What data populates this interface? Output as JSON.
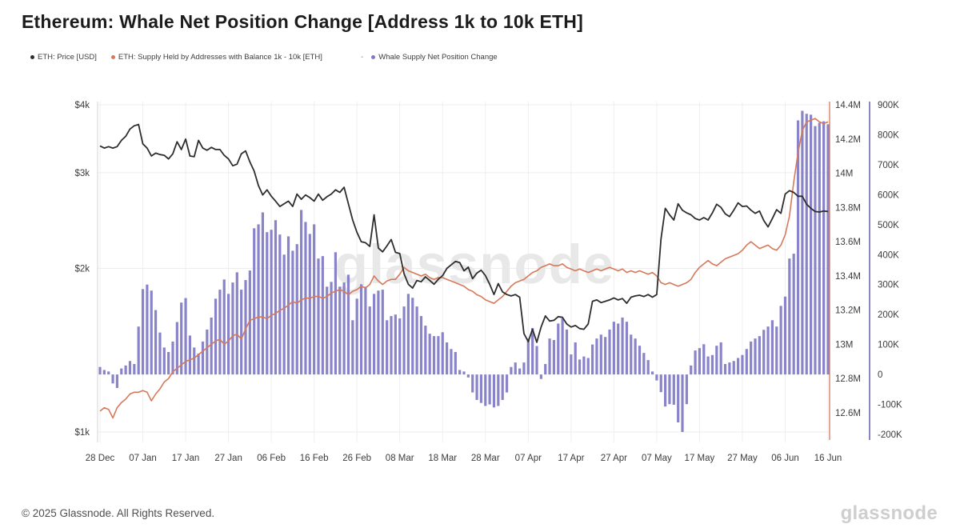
{
  "page": {
    "title": "Ethereum: Whale Net Position Change [Address 1k to 10k ETH]"
  },
  "legend": {
    "separator": "-",
    "items": [
      {
        "label": "ETH: Price [USD]",
        "color": "#2d2d2d"
      },
      {
        "label": "ETH: Supply Held by Addresses with Balance 1k - 10k [ETH]",
        "color": "#d6795a"
      },
      {
        "label": "Whale Supply Net Position Change",
        "color": "#7f7ac5"
      }
    ]
  },
  "watermark": "glassnode",
  "footer": {
    "copyright": "© 2025 Glassnode. All Rights Reserved.",
    "brand": "glassnode"
  },
  "chart_data": {
    "type": "mixed",
    "title": "Ethereum: Whale Net Position Change [Address 1k to 10k ETH]",
    "x_start": "28 Dec",
    "x_end": "16 Jun",
    "x_tick_labels": [
      "28 Dec",
      "07 Jan",
      "17 Jan",
      "27 Jan",
      "06 Feb",
      "16 Feb",
      "26 Feb",
      "08 Mar",
      "18 Mar",
      "28 Mar",
      "07 Apr",
      "17 Apr",
      "27 Apr",
      "07 May",
      "17 May",
      "27 May",
      "06 Jun",
      "16 Jun"
    ],
    "x_tick_day_index": [
      0,
      10,
      20,
      30,
      40,
      50,
      60,
      70,
      80,
      90,
      100,
      110,
      120,
      130,
      140,
      150,
      160,
      170
    ],
    "axes": {
      "price_left": {
        "scale": "log",
        "unit": "USD",
        "ticks": [
          "$4k",
          "$3k",
          "$2k",
          "$1k"
        ],
        "values": [
          4000,
          3000,
          2000,
          1000
        ],
        "range": [
          1000,
          4000
        ]
      },
      "supply_right": {
        "scale": "linear",
        "unit": "ETH",
        "ticks": [
          "14.4M",
          "14.2M",
          "14M",
          "13.8M",
          "13.6M",
          "13.4M",
          "13.2M",
          "13M",
          "12.8M",
          "12.6M"
        ],
        "values": [
          14.4,
          14.2,
          14.0,
          13.8,
          13.6,
          13.4,
          13.2,
          13.0,
          12.8,
          12.6
        ],
        "range": [
          12.6,
          14.4
        ]
      },
      "net_right": {
        "scale": "linear",
        "unit": "ETH",
        "ticks": [
          "900K",
          "800K",
          "700K",
          "600K",
          "500K",
          "400K",
          "300K",
          "200K",
          "100K",
          "0",
          "-100K",
          "-200K"
        ],
        "values": [
          900,
          800,
          700,
          600,
          500,
          400,
          300,
          200,
          100,
          0,
          -100,
          -200
        ],
        "range": [
          -200,
          900
        ]
      }
    },
    "series": [
      {
        "name": "ETH: Price [USD]",
        "type": "line",
        "axis": "price_left",
        "color": "#2d2d2d",
        "unit": "USD/day",
        "values": [
          3360,
          3330,
          3350,
          3330,
          3350,
          3440,
          3500,
          3610,
          3660,
          3680,
          3390,
          3330,
          3220,
          3260,
          3240,
          3230,
          3180,
          3250,
          3420,
          3310,
          3460,
          3220,
          3210,
          3440,
          3330,
          3300,
          3340,
          3310,
          3310,
          3230,
          3180,
          3090,
          3110,
          3250,
          3290,
          3140,
          3020,
          2840,
          2730,
          2790,
          2715,
          2660,
          2600,
          2630,
          2660,
          2600,
          2740,
          2680,
          2730,
          2700,
          2660,
          2740,
          2670,
          2710,
          2740,
          2790,
          2760,
          2820,
          2630,
          2455,
          2330,
          2240,
          2230,
          2195,
          2510,
          2180,
          2145,
          2200,
          2260,
          2140,
          2130,
          1956,
          1870,
          1840,
          1900,
          1890,
          1930,
          1900,
          1870,
          1910,
          1940,
          2000,
          2030,
          2060,
          2050,
          1980,
          2010,
          1915,
          1960,
          1985,
          1940,
          1870,
          1790,
          1875,
          1810,
          1790,
          1780,
          1790,
          1770,
          1517,
          1466,
          1545,
          1462,
          1560,
          1635,
          1600,
          1605,
          1630,
          1625,
          1580,
          1560,
          1570,
          1550,
          1545,
          1580,
          1740,
          1750,
          1730,
          1740,
          1750,
          1765,
          1750,
          1760,
          1725,
          1770,
          1780,
          1785,
          1775,
          1790,
          1770,
          1790,
          2265,
          2580,
          2510,
          2455,
          2630,
          2560,
          2530,
          2510,
          2470,
          2455,
          2480,
          2455,
          2530,
          2625,
          2590,
          2520,
          2490,
          2560,
          2640,
          2600,
          2605,
          2560,
          2525,
          2550,
          2450,
          2385,
          2470,
          2565,
          2525,
          2740,
          2780,
          2760,
          2715,
          2715,
          2625,
          2580,
          2545,
          2540,
          2550,
          2545
        ]
      },
      {
        "name": "ETH: Supply Held by Addresses with Balance 1k - 10k [ETH]",
        "type": "line",
        "axis": "supply_right",
        "color": "#d6795a",
        "unit": "M ETH/day",
        "values": [
          12.61,
          12.63,
          12.62,
          12.57,
          12.63,
          12.66,
          12.68,
          12.71,
          12.72,
          12.72,
          12.73,
          12.72,
          12.67,
          12.71,
          12.74,
          12.78,
          12.8,
          12.84,
          12.86,
          12.88,
          12.9,
          12.91,
          12.92,
          12.94,
          12.96,
          12.98,
          13.0,
          13.02,
          13.03,
          13.0,
          13.02,
          13.05,
          13.06,
          13.03,
          13.09,
          13.14,
          13.15,
          13.16,
          13.16,
          13.15,
          13.17,
          13.18,
          13.2,
          13.21,
          13.23,
          13.25,
          13.24,
          13.26,
          13.27,
          13.27,
          13.28,
          13.28,
          13.27,
          13.28,
          13.3,
          13.31,
          13.32,
          13.31,
          13.29,
          13.31,
          13.32,
          13.34,
          13.33,
          13.35,
          13.4,
          13.37,
          13.35,
          13.37,
          13.38,
          13.38,
          13.41,
          13.45,
          13.43,
          13.42,
          13.41,
          13.4,
          13.41,
          13.39,
          13.38,
          13.39,
          13.39,
          13.38,
          13.37,
          13.36,
          13.35,
          13.34,
          13.32,
          13.31,
          13.29,
          13.28,
          13.26,
          13.25,
          13.24,
          13.26,
          13.28,
          13.31,
          13.34,
          13.36,
          13.37,
          13.38,
          13.4,
          13.42,
          13.43,
          13.45,
          13.46,
          13.47,
          13.46,
          13.46,
          13.47,
          13.45,
          13.44,
          13.43,
          13.44,
          13.43,
          13.42,
          13.43,
          13.44,
          13.43,
          13.44,
          13.45,
          13.44,
          13.43,
          13.44,
          13.42,
          13.43,
          13.42,
          13.43,
          13.42,
          13.41,
          13.42,
          13.4,
          13.36,
          13.35,
          13.36,
          13.35,
          13.34,
          13.35,
          13.36,
          13.38,
          13.42,
          13.45,
          13.47,
          13.49,
          13.47,
          13.46,
          13.48,
          13.5,
          13.51,
          13.52,
          13.53,
          13.55,
          13.58,
          13.6,
          13.58,
          13.56,
          13.57,
          13.58,
          13.56,
          13.55,
          13.58,
          13.64,
          13.75,
          13.95,
          14.12,
          14.25,
          14.3,
          14.31,
          14.32,
          14.3,
          14.29,
          14.3
        ]
      },
      {
        "name": "Whale Supply Net Position Change",
        "type": "bar",
        "axis": "net_right",
        "color": "#7f7ac5",
        "unit": "K ETH/day",
        "values": [
          25,
          15,
          10,
          -30,
          -45,
          20,
          30,
          45,
          35,
          160,
          285,
          300,
          280,
          215,
          140,
          90,
          75,
          110,
          175,
          240,
          255,
          130,
          90,
          70,
          110,
          150,
          190,
          253,
          283,
          317,
          269,
          307,
          341,
          283,
          315,
          347,
          488,
          501,
          541,
          475,
          483,
          515,
          467,
          400,
          461,
          413,
          435,
          549,
          509,
          469,
          501,
          387,
          395,
          293,
          309,
          408,
          293,
          307,
          333,
          181,
          253,
          301,
          293,
          227,
          269,
          280,
          283,
          181,
          195,
          200,
          187,
          227,
          269,
          256,
          227,
          195,
          163,
          136,
          128,
          128,
          141,
          107,
          85,
          75,
          15,
          10,
          -10,
          -60,
          -85,
          -95,
          -105,
          -100,
          -110,
          -105,
          -85,
          -60,
          25,
          40,
          20,
          40,
          120,
          155,
          95,
          -15,
          35,
          120,
          115,
          170,
          187,
          150,
          67,
          107,
          50,
          60,
          55,
          100,
          120,
          133,
          125,
          150,
          176,
          170,
          190,
          176,
          133,
          120,
          96,
          72,
          48,
          10,
          -20,
          -59,
          -107,
          -99,
          -101,
          -160,
          -192,
          -99,
          30,
          80,
          88,
          101,
          60,
          65,
          96,
          107,
          35,
          40,
          45,
          55,
          65,
          85,
          110,
          120,
          128,
          149,
          160,
          181,
          160,
          229,
          260,
          387,
          403,
          848,
          880,
          870,
          867,
          829,
          840,
          845,
          835
        ]
      }
    ]
  }
}
